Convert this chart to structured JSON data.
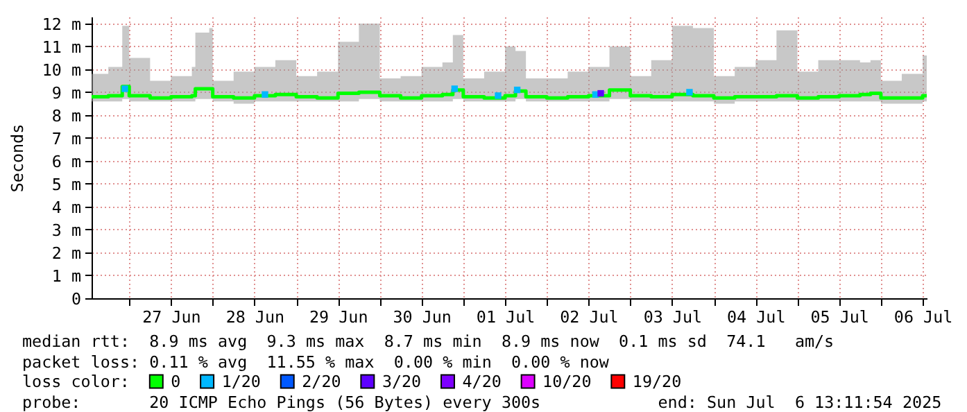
{
  "chart_data": {
    "type": "step",
    "ylabel": "Seconds",
    "legend_title": "loss color:",
    "legend": "bottom",
    "grid": true,
    "line_style": "solid",
    "xlim": [
      "2025-06-26T13:11",
      "2025-07-06T13:11"
    ],
    "xticks": [
      {
        "value": "2025-06-27T00:00",
        "label": null
      },
      {
        "value": "2025-06-27T12:00",
        "label": "27 Jun"
      },
      {
        "value": "2025-06-28T00:00",
        "label": null
      },
      {
        "value": "2025-06-28T12:00",
        "label": "28 Jun"
      },
      {
        "value": "2025-06-29T00:00",
        "label": null
      },
      {
        "value": "2025-06-29T12:00",
        "label": "29 Jun"
      },
      {
        "value": "2025-06-30T00:00",
        "label": null
      },
      {
        "value": "2025-06-30T12:00",
        "label": "30 Jun"
      },
      {
        "value": "2025-07-01T00:00",
        "label": null
      },
      {
        "value": "2025-07-01T12:00",
        "label": "01 Jul"
      },
      {
        "value": "2025-07-02T00:00",
        "label": null
      },
      {
        "value": "2025-07-02T12:00",
        "label": "02 Jul"
      },
      {
        "value": "2025-07-03T00:00",
        "label": null
      },
      {
        "value": "2025-07-03T12:00",
        "label": "03 Jul"
      },
      {
        "value": "2025-07-04T00:00",
        "label": null
      },
      {
        "value": "2025-07-04T12:00",
        "label": "04 Jul"
      },
      {
        "value": "2025-07-05T00:00",
        "label": null
      },
      {
        "value": "2025-07-05T12:00",
        "label": "05 Jul"
      },
      {
        "value": "2025-07-06T00:00",
        "label": null
      },
      {
        "value": "2025-07-06T12:00",
        "label": "06 Jul"
      }
    ],
    "ylim": [
      0,
      12.3
    ],
    "yticks": [
      0,
      {
        "value": 1,
        "label": "1 m"
      },
      {
        "value": 2,
        "label": "2 m"
      },
      {
        "value": 3,
        "label": "3 m"
      },
      {
        "value": 4,
        "label": "4 m"
      },
      {
        "value": 5,
        "label": "5 m"
      },
      {
        "value": 6,
        "label": "6 m"
      },
      {
        "value": 7,
        "label": "7 m"
      },
      {
        "value": 8,
        "label": "8 m"
      },
      {
        "value": 9,
        "label": "9 m"
      },
      {
        "value": 10,
        "label": "10 m"
      },
      {
        "value": 11,
        "label": "11 m"
      },
      {
        "value": 12,
        "label": "12 m"
      }
    ],
    "series": [
      {
        "name": "0",
        "color": "#00ff00",
        "x": [
          "2025-06-26T13:11",
          "2025-06-26T18:00",
          "2025-06-26T22:00",
          "2025-06-27T00:00",
          "2025-06-27T06:00",
          "2025-06-27T12:00",
          "2025-06-27T18:00",
          "2025-06-27T19:00",
          "2025-06-27T23:00",
          "2025-06-28T00:00",
          "2025-06-28T06:00",
          "2025-06-28T12:00",
          "2025-06-28T18:00",
          "2025-06-29T00:00",
          "2025-06-29T06:00",
          "2025-06-29T12:00",
          "2025-06-29T18:00",
          "2025-06-30T00:00",
          "2025-06-30T06:00",
          "2025-06-30T12:00",
          "2025-06-30T18:00",
          "2025-06-30T21:00",
          "2025-07-01T00:00",
          "2025-07-01T06:00",
          "2025-07-01T12:00",
          "2025-07-01T15:00",
          "2025-07-01T18:00",
          "2025-07-02T00:00",
          "2025-07-02T06:00",
          "2025-07-02T12:00",
          "2025-07-02T18:00",
          "2025-07-03T00:00",
          "2025-07-03T06:00",
          "2025-07-03T12:00",
          "2025-07-03T18:00",
          "2025-07-04T00:00",
          "2025-07-04T06:00",
          "2025-07-04T12:00",
          "2025-07-04T18:00",
          "2025-07-05T00:00",
          "2025-07-05T06:00",
          "2025-07-05T12:00",
          "2025-07-05T18:00",
          "2025-07-05T21:00",
          "2025-07-06T00:00",
          "2025-07-06T06:00",
          "2025-07-06T12:00",
          "2025-07-06T13:11"
        ],
        "values": [
          8.8,
          8.85,
          9.25,
          8.85,
          8.75,
          8.8,
          8.85,
          9.15,
          9.15,
          8.8,
          8.75,
          8.85,
          8.9,
          8.8,
          8.75,
          8.95,
          9.0,
          8.85,
          8.75,
          8.85,
          8.9,
          9.1,
          8.8,
          8.75,
          8.85,
          9.05,
          8.8,
          8.75,
          8.8,
          8.85,
          9.1,
          8.85,
          8.8,
          8.9,
          8.85,
          8.75,
          8.8,
          8.8,
          8.85,
          8.75,
          8.8,
          8.85,
          8.9,
          8.95,
          8.75,
          8.75,
          8.85,
          8.85
        ],
        "lower": [
          8.6,
          8.6,
          8.7,
          8.6,
          8.6,
          8.6,
          8.6,
          8.7,
          8.7,
          8.6,
          8.5,
          8.6,
          8.6,
          8.6,
          8.6,
          8.6,
          8.7,
          8.6,
          8.6,
          8.6,
          8.6,
          8.7,
          8.6,
          8.6,
          8.6,
          8.7,
          8.6,
          8.6,
          8.6,
          8.6,
          8.7,
          8.6,
          8.6,
          8.6,
          8.6,
          8.5,
          8.6,
          8.6,
          8.6,
          8.6,
          8.6,
          8.6,
          8.6,
          8.6,
          8.5,
          8.5,
          8.6,
          8.6
        ],
        "upper": [
          9.8,
          10.1,
          11.9,
          10.5,
          9.5,
          9.7,
          10.1,
          11.6,
          11.8,
          9.5,
          9.9,
          10.1,
          10.4,
          9.7,
          9.9,
          11.2,
          12.0,
          9.6,
          9.7,
          10.1,
          10.3,
          11.5,
          9.6,
          9.9,
          11.0,
          10.8,
          9.6,
          9.6,
          9.9,
          10.1,
          11.0,
          9.7,
          10.4,
          11.9,
          11.8,
          9.7,
          10.1,
          10.4,
          11.7,
          9.9,
          10.4,
          10.4,
          10.3,
          10.4,
          9.5,
          9.8,
          10.6,
          11.0
        ]
      },
      {
        "name": "1/20",
        "type": "scatter",
        "color": "#00b8ff",
        "x": [
          "2025-06-26T22:45",
          "2025-06-28T15:00",
          "2025-06-30T21:30",
          "2025-07-01T10:00",
          "2025-07-01T15:30",
          "2025-07-02T14:00",
          "2025-07-03T17:00"
        ],
        "values": [
          9.15,
          8.9,
          9.15,
          8.85,
          9.1,
          8.9,
          9.0
        ]
      },
      {
        "name": "2/20",
        "type": "scatter",
        "color": "#0059ff"
      },
      {
        "name": "3/20",
        "type": "scatter",
        "color": "#5e00ff",
        "x": [
          "2025-07-02T15:30"
        ],
        "values": [
          8.95
        ]
      },
      {
        "name": "4/20",
        "type": "scatter",
        "color": "#7e00ff"
      },
      {
        "name": "10/20",
        "type": "scatter",
        "color": "#dd00ff"
      },
      {
        "name": "19/20",
        "type": "scatter",
        "color": "#ff0000"
      }
    ],
    "annotations": [
      "median rtt:  8.9 ms avg  9.3 ms max  8.7 ms min  8.9 ms now  0.1 ms sd  74.1   am/s",
      "packet loss: 0.11 % avg  11.55 % max  0.00 % min  0.00 % now",
      "probe:       20 ICMP Echo Pings (56 Bytes) every 300s",
      "end: Sun Jul  6 13:11:54 2025"
    ]
  }
}
